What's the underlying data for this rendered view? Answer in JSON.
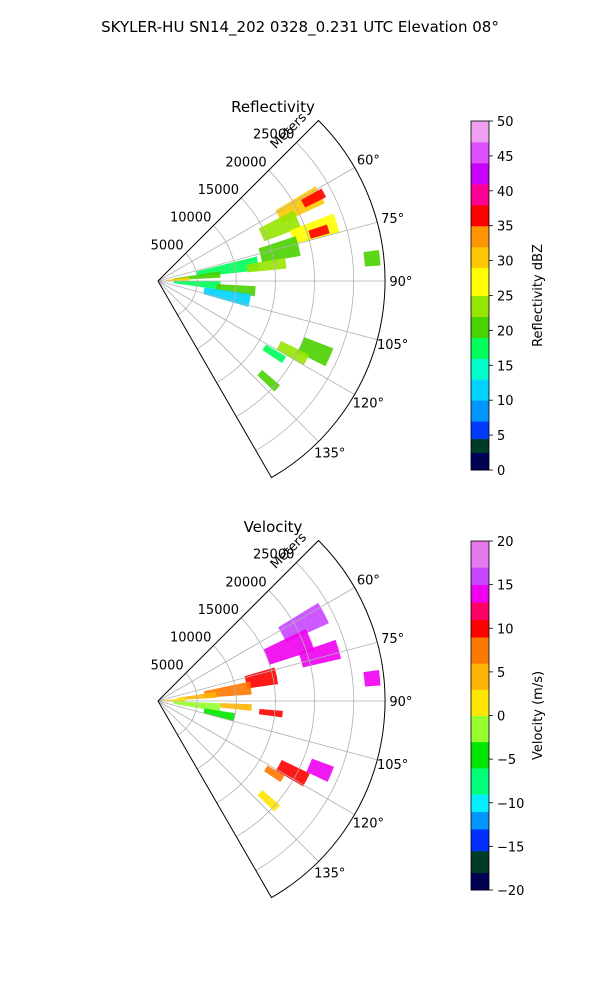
{
  "figure": {
    "suptitle": "SKYLER-HU  SN14_202  0328_0.231 UTC Elevation 08°"
  },
  "chart_data": [
    {
      "type": "polar-ppi",
      "title": "Reflectivity",
      "range_label": "Meters",
      "range_ticks": [
        5000,
        10000,
        15000,
        20000,
        25000
      ],
      "range_tick_labels": [
        "5000",
        "10000",
        "15000",
        "20000",
        "25000"
      ],
      "range_max": 29000,
      "azimuth_range_deg": [
        45,
        150
      ],
      "azimuth_ticks": [
        60,
        75,
        90,
        105,
        120,
        135
      ],
      "azimuth_tick_labels": [
        "60°",
        "75°",
        "90°",
        "105°",
        "120°",
        "135°"
      ],
      "grid": true,
      "colorbar": {
        "label": "Reflectivity dBZ",
        "min": 0,
        "max": 50,
        "ticks": [
          0,
          5,
          10,
          15,
          20,
          25,
          30,
          35,
          40,
          45,
          50
        ],
        "tick_labels": [
          "0",
          "5",
          "10",
          "15",
          "20",
          "25",
          "30",
          "35",
          "40",
          "45",
          "50"
        ],
        "stops": [
          {
            "v": 0,
            "c": "#000055"
          },
          {
            "v": 2.5,
            "c": "#003b2a"
          },
          {
            "v": 4.5,
            "c": "#003cff"
          },
          {
            "v": 7,
            "c": "#0096ff"
          },
          {
            "v": 10,
            "c": "#00d2ff"
          },
          {
            "v": 13,
            "c": "#00ffc8"
          },
          {
            "v": 16,
            "c": "#00ff5a"
          },
          {
            "v": 19,
            "c": "#4ad200"
          },
          {
            "v": 22,
            "c": "#96e600"
          },
          {
            "v": 25,
            "c": "#ffff00"
          },
          {
            "v": 29,
            "c": "#ffc800"
          },
          {
            "v": 32,
            "c": "#ff9600"
          },
          {
            "v": 35,
            "c": "#ff0000"
          },
          {
            "v": 38,
            "c": "#ff0096"
          },
          {
            "v": 41,
            "c": "#c800ff"
          },
          {
            "v": 44,
            "c": "#dc50ff"
          },
          {
            "v": 47,
            "c": "#f0a0f0"
          },
          {
            "v": 50,
            "c": "#fff0ff"
          }
        ]
      },
      "echo_cells": [
        {
          "az": 62,
          "r": 20500,
          "dr": 6000,
          "daz": 6,
          "value": 30
        },
        {
          "az": 62,
          "r": 22500,
          "dr": 3000,
          "daz": 3,
          "value": 36
        },
        {
          "az": 66,
          "r": 17000,
          "dr": 5000,
          "daz": 7,
          "value": 22
        },
        {
          "az": 72,
          "r": 21000,
          "dr": 6000,
          "daz": 6,
          "value": 25
        },
        {
          "az": 73,
          "r": 21500,
          "dr": 2500,
          "daz": 3,
          "value": 36
        },
        {
          "az": 76,
          "r": 16000,
          "dr": 5000,
          "daz": 8,
          "value": 20
        },
        {
          "az": 80,
          "r": 9000,
          "dr": 8000,
          "daz": 8,
          "value": 18
        },
        {
          "az": 82,
          "r": 14000,
          "dr": 5000,
          "daz": 5,
          "value": 22
        },
        {
          "az": 84,
          "r": 5000,
          "dr": 6000,
          "daz": 6,
          "value": 20
        },
        {
          "az": 86,
          "r": 2500,
          "dr": 3000,
          "daz": 6,
          "value": 30
        },
        {
          "az": 94,
          "r": 5000,
          "dr": 6000,
          "daz": 8,
          "value": 16
        },
        {
          "az": 96,
          "r": 10000,
          "dr": 5000,
          "daz": 6,
          "value": 20
        },
        {
          "az": 84,
          "r": 27500,
          "dr": 2000,
          "daz": 4,
          "value": 20
        },
        {
          "az": 102,
          "r": 9000,
          "dr": 6000,
          "daz": 8,
          "value": 12
        },
        {
          "az": 114,
          "r": 22000,
          "dr": 4000,
          "daz": 6,
          "value": 20
        },
        {
          "az": 118,
          "r": 19500,
          "dr": 4000,
          "daz": 4,
          "value": 24
        },
        {
          "az": 122,
          "r": 17500,
          "dr": 3000,
          "daz": 3,
          "value": 18
        },
        {
          "az": 132,
          "r": 19000,
          "dr": 3000,
          "daz": 3,
          "value": 20
        }
      ]
    },
    {
      "type": "polar-ppi",
      "title": "Velocity",
      "range_label": "Meters",
      "range_ticks": [
        5000,
        10000,
        15000,
        20000,
        25000
      ],
      "range_tick_labels": [
        "5000",
        "10000",
        "15000",
        "20000",
        "25000"
      ],
      "range_max": 29000,
      "azimuth_range_deg": [
        45,
        150
      ],
      "azimuth_ticks": [
        60,
        75,
        90,
        105,
        120,
        135
      ],
      "azimuth_tick_labels": [
        "60°",
        "75°",
        "90°",
        "105°",
        "120°",
        "135°"
      ],
      "grid": true,
      "colorbar": {
        "label": "Velocity (m/s)",
        "min": -20,
        "max": 20,
        "ticks": [
          -20,
          -15,
          -10,
          -5,
          0,
          5,
          10,
          15,
          20
        ],
        "tick_labels": [
          "−20",
          "−15",
          "−10",
          "−5",
          "0",
          "5",
          "10",
          "15",
          "20"
        ],
        "stops": [
          {
            "v": -20,
            "c": "#000055"
          },
          {
            "v": -18,
            "c": "#003b2a"
          },
          {
            "v": -15.5,
            "c": "#0030ff"
          },
          {
            "v": -13,
            "c": "#0096ff"
          },
          {
            "v": -11,
            "c": "#00f0ff"
          },
          {
            "v": -9,
            "c": "#00ff78"
          },
          {
            "v": -6,
            "c": "#00e600"
          },
          {
            "v": -3,
            "c": "#96ff30"
          },
          {
            "v": 0,
            "c": "#ffe600"
          },
          {
            "v": 3,
            "c": "#ffb400"
          },
          {
            "v": 6,
            "c": "#ff7800"
          },
          {
            "v": 9,
            "c": "#ff0000"
          },
          {
            "v": 11,
            "c": "#ff0064"
          },
          {
            "v": 13,
            "c": "#f000f0"
          },
          {
            "v": 15,
            "c": "#c846ff"
          },
          {
            "v": 17,
            "c": "#e678f0"
          },
          {
            "v": 20,
            "c": "#fff0ff"
          }
        ]
      },
      "echo_cells": [
        {
          "az": 62,
          "r": 21000,
          "dr": 6000,
          "daz": 7,
          "value": 16
        },
        {
          "az": 68,
          "r": 18000,
          "dr": 6000,
          "daz": 8,
          "value": 14
        },
        {
          "az": 74,
          "r": 21500,
          "dr": 5000,
          "daz": 6,
          "value": 13
        },
        {
          "az": 78,
          "r": 13500,
          "dr": 4000,
          "daz": 8,
          "value": 10
        },
        {
          "az": 82,
          "r": 9000,
          "dr": 6000,
          "daz": 8,
          "value": 8
        },
        {
          "az": 84,
          "r": 5000,
          "dr": 5000,
          "daz": 6,
          "value": 4
        },
        {
          "az": 88,
          "r": 2000,
          "dr": 3000,
          "daz": 10,
          "value": 0
        },
        {
          "az": 96,
          "r": 5000,
          "dr": 6000,
          "daz": 8,
          "value": -3
        },
        {
          "az": 94,
          "r": 10000,
          "dr": 4000,
          "daz": 4,
          "value": 3
        },
        {
          "az": 96,
          "r": 14500,
          "dr": 3000,
          "daz": 3,
          "value": 10
        },
        {
          "az": 102,
          "r": 8000,
          "dr": 4000,
          "daz": 6,
          "value": -6
        },
        {
          "az": 84,
          "r": 27500,
          "dr": 2000,
          "daz": 4,
          "value": 14
        },
        {
          "az": 113,
          "r": 22500,
          "dr": 3000,
          "daz": 5,
          "value": 13
        },
        {
          "az": 118,
          "r": 19500,
          "dr": 4000,
          "daz": 5,
          "value": 9
        },
        {
          "az": 122,
          "r": 17500,
          "dr": 2500,
          "daz": 3,
          "value": 6
        },
        {
          "az": 132,
          "r": 19000,
          "dr": 3000,
          "daz": 3,
          "value": 0
        }
      ]
    }
  ]
}
